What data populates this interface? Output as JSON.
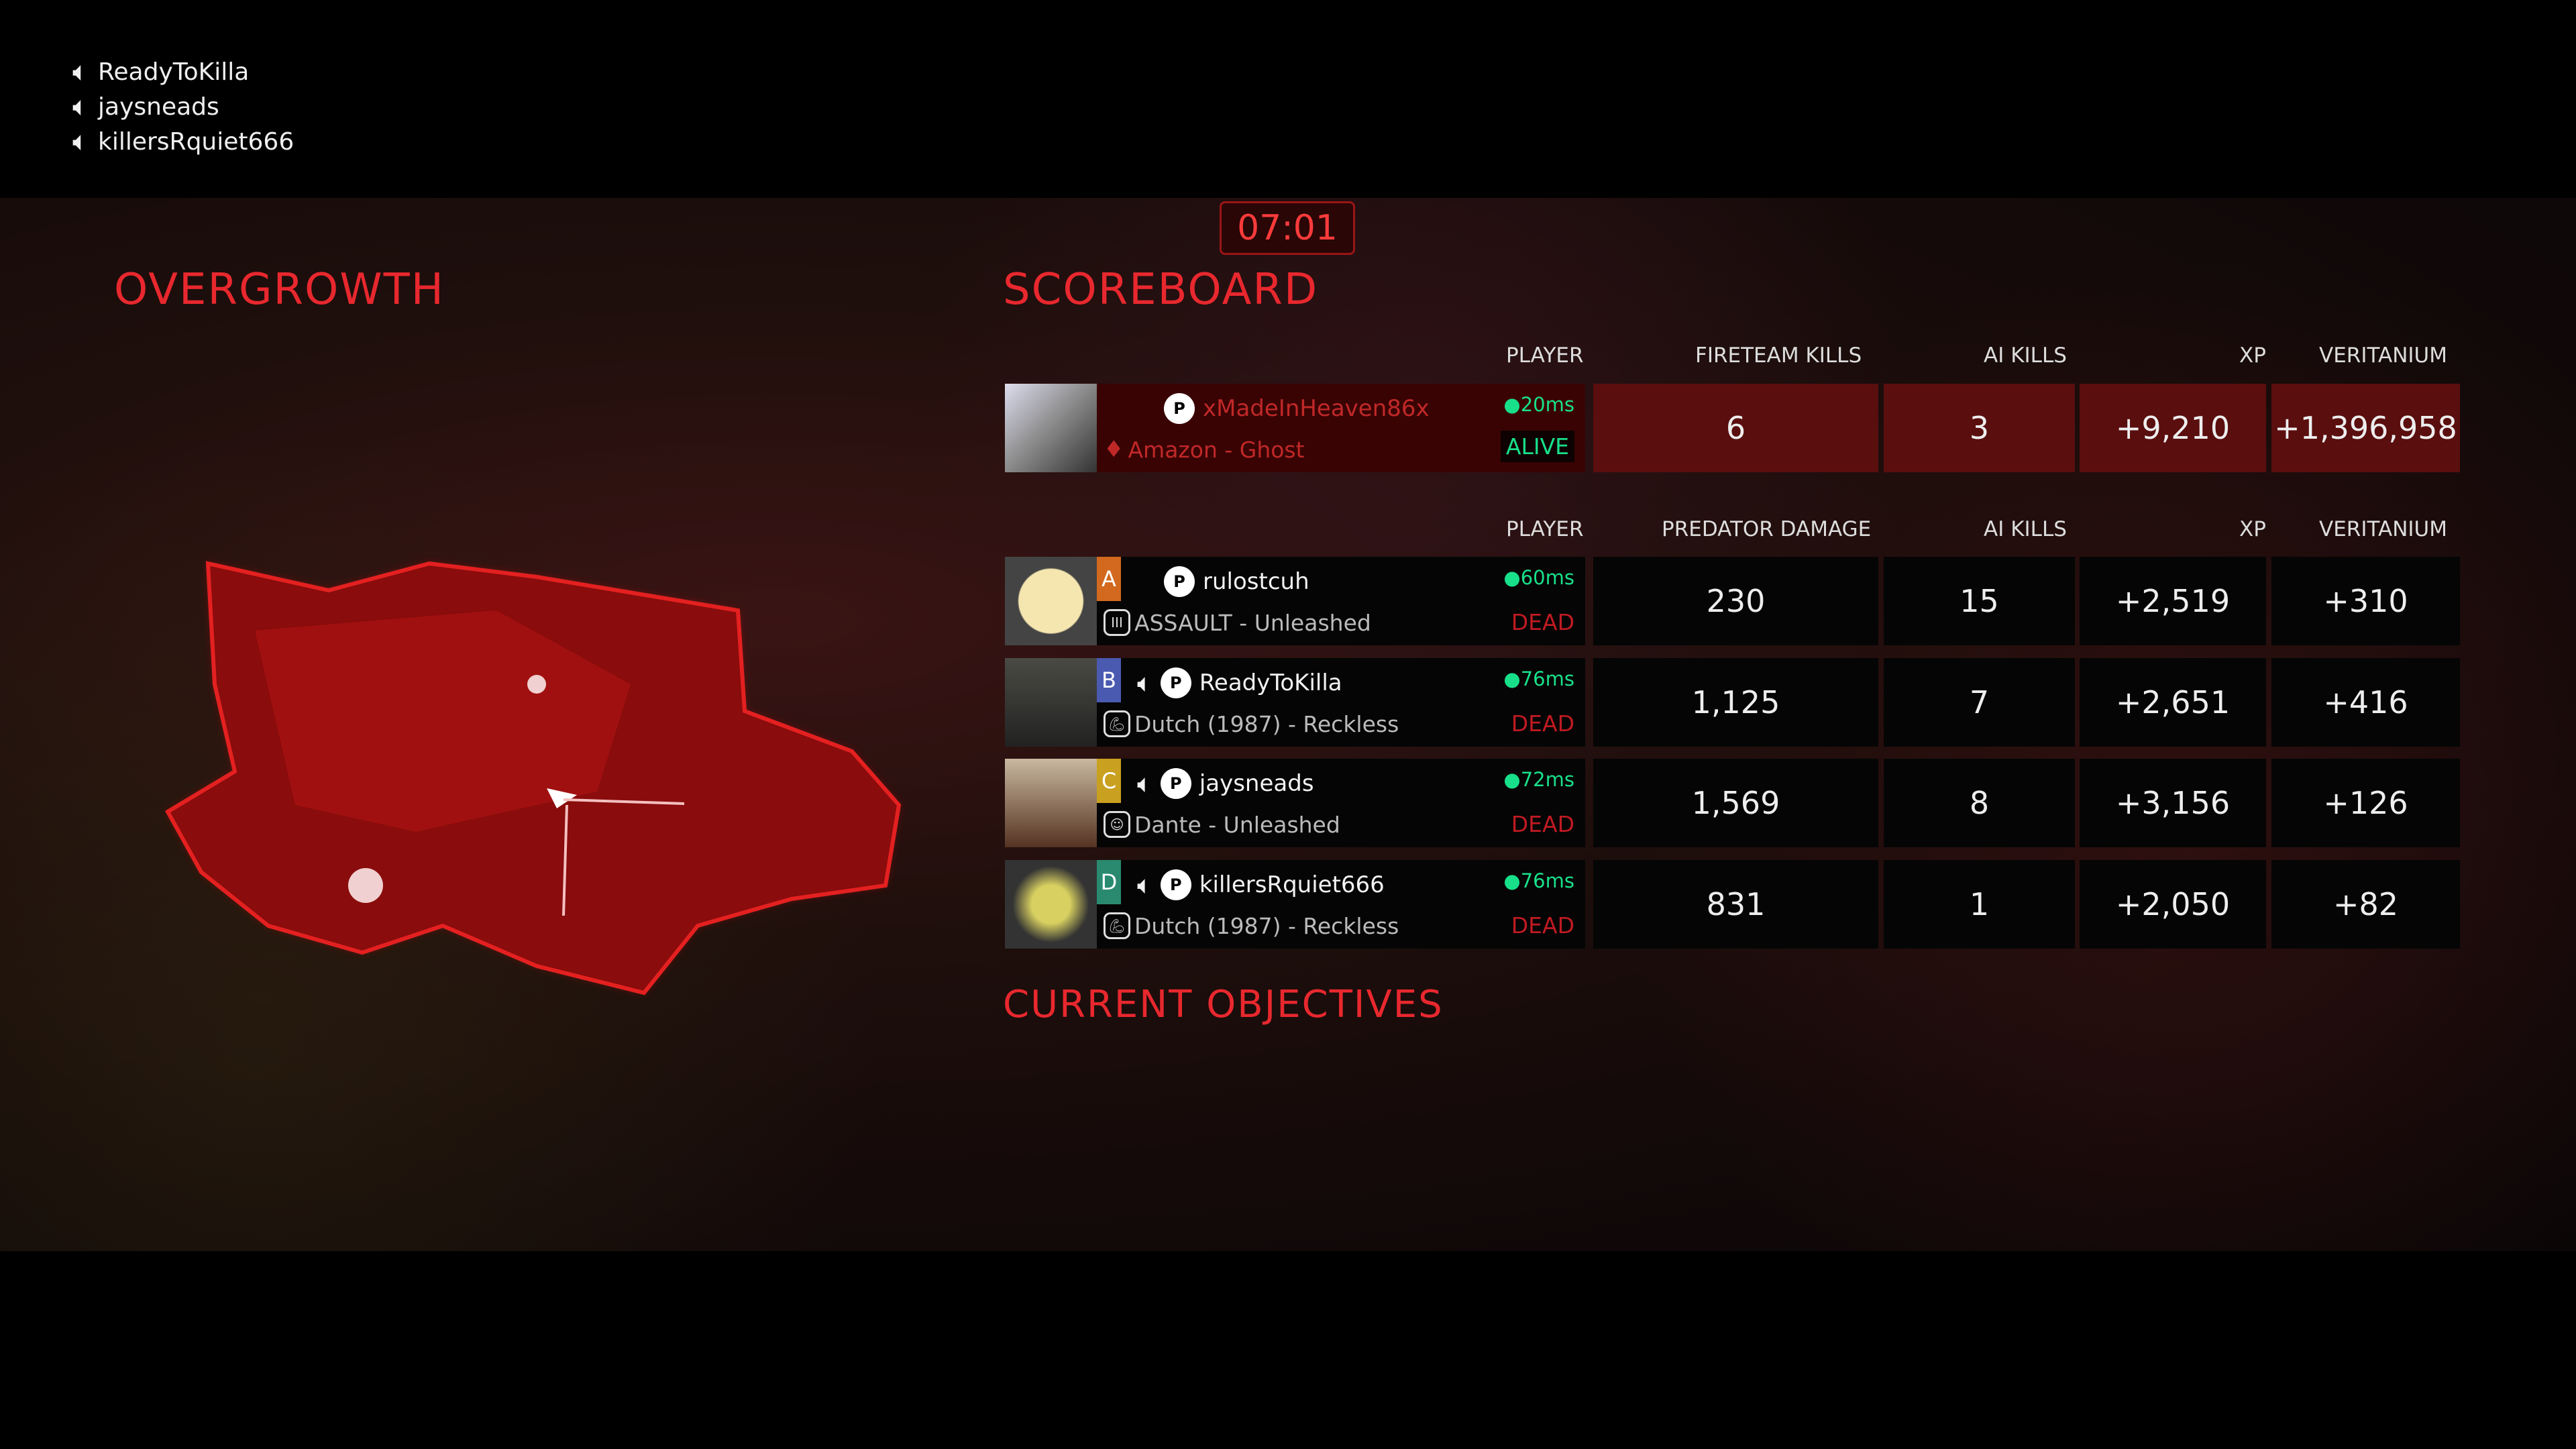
{
  "voice_chat": [
    {
      "name": "ReadyToKilla",
      "icon": "speaker-icon"
    },
    {
      "name": "jaysneads",
      "icon": "speaker-icon"
    },
    {
      "name": "killersRquiet666",
      "icon": "speaker-icon"
    }
  ],
  "timer": "07:01",
  "map": {
    "title": "OVERGROWTH"
  },
  "scoreboard": {
    "title": "SCOREBOARD",
    "predator_headers": {
      "player": "PLAYER",
      "kills": "FIRETEAM KILLS",
      "ai_kills": "AI KILLS",
      "xp": "XP",
      "veritanium": "VERITANIUM"
    },
    "predator": {
      "name": "xMadeInHeaven86x",
      "class": "Amazon - Ghost",
      "ping": "20ms",
      "status": "ALIVE",
      "fireteam_kills": "6",
      "ai_kills": "3",
      "xp": "+9,210",
      "veritanium": "+1,396,958"
    },
    "fireteam_headers": {
      "player": "PLAYER",
      "damage": "PREDATOR DAMAGE",
      "ai_kills": "AI KILLS",
      "xp": "XP",
      "veritanium": "VERITANIUM"
    },
    "fireteam": [
      {
        "letter": "A",
        "letter_color": "#d2691e",
        "name": "rulostcuh",
        "class": "ASSAULT - Unleashed",
        "ping": "60ms",
        "status": "DEAD",
        "damage": "230",
        "ai_kills": "15",
        "xp": "+2,519",
        "veritanium": "+310",
        "voice": false
      },
      {
        "letter": "B",
        "letter_color": "#4a5ab0",
        "name": "ReadyToKilla",
        "class": "Dutch (1987) - Reckless",
        "ping": "76ms",
        "status": "DEAD",
        "damage": "1,125",
        "ai_kills": "7",
        "xp": "+2,651",
        "veritanium": "+416",
        "voice": true
      },
      {
        "letter": "C",
        "letter_color": "#c9a020",
        "name": "jaysneads",
        "class": "Dante - Unleashed",
        "ping": "72ms",
        "status": "DEAD",
        "damage": "1,569",
        "ai_kills": "8",
        "xp": "+3,156",
        "veritanium": "+126",
        "voice": true
      },
      {
        "letter": "D",
        "letter_color": "#2a8a70",
        "name": "killersRquiet666",
        "class": "Dutch (1987) - Reckless",
        "ping": "76ms",
        "status": "DEAD",
        "damage": "831",
        "ai_kills": "1",
        "xp": "+2,050",
        "veritanium": "+82",
        "voice": true
      }
    ]
  },
  "objectives": {
    "title": "CURRENT OBJECTIVES"
  }
}
